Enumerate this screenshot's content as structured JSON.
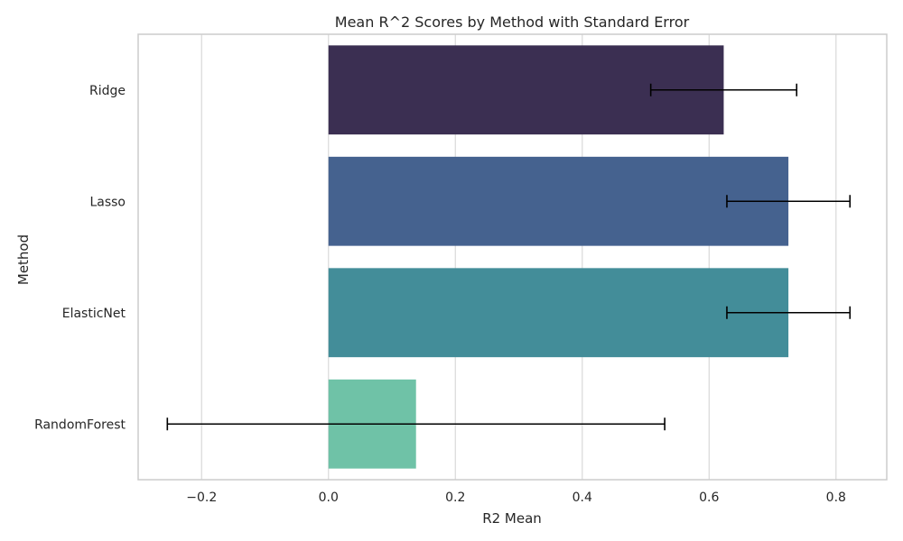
{
  "chart_data": {
    "type": "bar",
    "orientation": "horizontal",
    "title": "Mean R^2 Scores by Method with Standard Error",
    "xlabel": "R2 Mean",
    "ylabel": "Method",
    "categories": [
      "Ridge",
      "Lasso",
      "ElasticNet",
      "RandomForest"
    ],
    "values": [
      0.623,
      0.725,
      0.725,
      0.138
    ],
    "errors": [
      0.115,
      0.097,
      0.097,
      0.392
    ],
    "colors": [
      "#3b2f52",
      "#45628f",
      "#438d99",
      "#6fc2a7"
    ],
    "xlim": [
      -0.3,
      0.88
    ],
    "xticks": [
      -0.2,
      0.0,
      0.2,
      0.4,
      0.6,
      0.8
    ],
    "xtick_labels": [
      "−0.2",
      "0.0",
      "0.2",
      "0.4",
      "0.6",
      "0.8"
    ],
    "grid": true,
    "error_bar_color": "#000000",
    "grid_color": "#d9d9d9",
    "spine_color": "#cccccc"
  }
}
